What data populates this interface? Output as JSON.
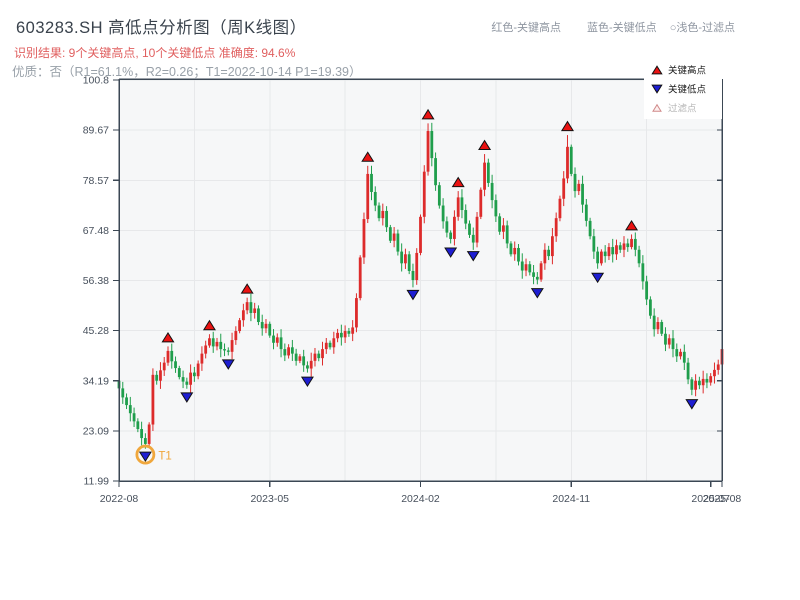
{
  "title": "603283.SH 高低点分析图（周K线图）",
  "subtitle_result": "识别结果: 9个关键高点, 10个关键低点  准确度: 94.6%",
  "subtitle_quality": "优质：否（R1=61.1%，R2=0.26；T1=2022-10-14 P1=19.39）",
  "top_legend": {
    "high": "红色-关键高点",
    "low": "蓝色-关键低点",
    "filter": "○浅色-过滤点"
  },
  "box_legend": {
    "high": "关键高点",
    "low": "关键低点",
    "filter": "过滤点"
  },
  "colors": {
    "up_candle": "#dd2b2b",
    "down_candle": "#1f9e4c",
    "key_high_marker": "#ea1212",
    "key_low_marker": "#1e1ed2",
    "filter_marker_fill": "#fdf0ef",
    "filter_marker_stroke": "#d08a8a",
    "t1_orange": "#f0a73c",
    "axis": "#3b4754",
    "plot_bg": "#f6f7f8",
    "grid": "#e7e8ea",
    "red_text": "#e05f5f",
    "gray_text": "#99a1a9"
  },
  "chart_data": {
    "type": "candlestick",
    "symbol": "603283.SH",
    "frequency": "weekly",
    "title": "603283.SH 高低点分析图（周K线图）",
    "ylim": [
      11.99,
      100.8
    ],
    "y_ticks": [
      "100.8",
      "89.67",
      "78.57",
      "67.48",
      "56.38",
      "45.28",
      "34.19",
      "23.09",
      "11.99"
    ],
    "x_ticks": [
      {
        "bar": 0,
        "label": "2022-08"
      },
      {
        "bar": 40,
        "label": "2023-05"
      },
      {
        "bar": 80,
        "label": "2024-02"
      },
      {
        "bar": 120,
        "label": "2024-11"
      },
      {
        "bar": 157,
        "label": "2025-07"
      },
      {
        "bar": 160,
        "label": "2025-08"
      }
    ],
    "grid_bars": [
      20,
      40,
      60,
      80,
      100,
      120,
      140
    ],
    "first_open": 34.2,
    "closes": [
      32.5,
      30.5,
      28.8,
      27.0,
      25.2,
      23.5,
      21.5,
      20.2,
      24.5,
      35.5,
      34.2,
      36.5,
      38.2,
      40.8,
      38.5,
      37.0,
      35.0,
      34.0,
      33.3,
      36.0,
      35.2,
      38.0,
      40.2,
      42.0,
      43.6,
      41.8,
      42.8,
      41.2,
      40.9,
      40.6,
      43.2,
      45.2,
      47.6,
      49.8,
      51.6,
      49.2,
      50.2,
      47.2,
      45.8,
      46.8,
      44.2,
      42.6,
      43.8,
      41.2,
      39.8,
      41.6,
      40.2,
      38.6,
      39.6,
      37.6,
      36.9,
      38.6,
      40.2,
      39.2,
      41.2,
      42.6,
      41.6,
      43.6,
      44.8,
      43.8,
      45.2,
      44.6,
      46.0,
      52.5,
      61.5,
      70.0,
      80.0,
      76.0,
      73.0,
      70.2,
      71.8,
      68.2,
      65.2,
      66.8,
      62.8,
      60.2,
      62.2,
      58.5,
      56.5,
      62.5,
      70.5,
      80.5,
      89.5,
      83.5,
      77.5,
      73.0,
      69.5,
      67.0,
      65.6,
      70.5,
      74.8,
      72.0,
      69.0,
      66.5,
      64.8,
      70.5,
      76.5,
      82.5,
      78.0,
      74.2,
      70.6,
      67.2,
      68.6,
      64.6,
      62.2,
      63.6,
      60.6,
      58.6,
      60.0,
      58.2,
      57.2,
      56.6,
      60.2,
      63.2,
      61.8,
      66.2,
      70.2,
      74.5,
      79.0,
      86.0,
      80.0,
      76.2,
      77.8,
      73.2,
      69.6,
      66.2,
      62.8,
      60.2,
      62.8,
      61.8,
      63.8,
      62.2,
      64.2,
      63.2,
      64.6,
      63.8,
      65.6,
      63.2,
      60.2,
      56.2,
      52.2,
      48.6,
      45.6,
      47.2,
      44.6,
      42.2,
      43.6,
      41.2,
      39.6,
      40.6,
      38.2,
      34.5,
      32.2,
      34.2,
      33.2,
      34.6,
      33.8,
      35.2,
      36.6,
      37.8,
      41.2
    ],
    "key_highs": [
      {
        "bar": 13,
        "price": 41.8
      },
      {
        "bar": 24,
        "price": 44.5
      },
      {
        "bar": 34,
        "price": 52.6
      },
      {
        "bar": 66,
        "price": 81.8
      },
      {
        "bar": 82,
        "price": 91.2
      },
      {
        "bar": 90,
        "price": 76.2
      },
      {
        "bar": 97,
        "price": 84.4
      },
      {
        "bar": 119,
        "price": 88.6
      },
      {
        "bar": 136,
        "price": 66.6
      }
    ],
    "key_lows": [
      {
        "bar": 7,
        "price": 19.39
      },
      {
        "bar": 18,
        "price": 32.5
      },
      {
        "bar": 29,
        "price": 39.8
      },
      {
        "bar": 50,
        "price": 36.0
      },
      {
        "bar": 78,
        "price": 55.2
      },
      {
        "bar": 88,
        "price": 64.6
      },
      {
        "bar": 94,
        "price": 63.8
      },
      {
        "bar": 111,
        "price": 55.6
      },
      {
        "bar": 127,
        "price": 59.0
      },
      {
        "bar": 152,
        "price": 31.0
      }
    ],
    "t1_annotation": {
      "bar": 7,
      "price": 19.39,
      "label": "T1",
      "date": "2022-10-14"
    }
  }
}
